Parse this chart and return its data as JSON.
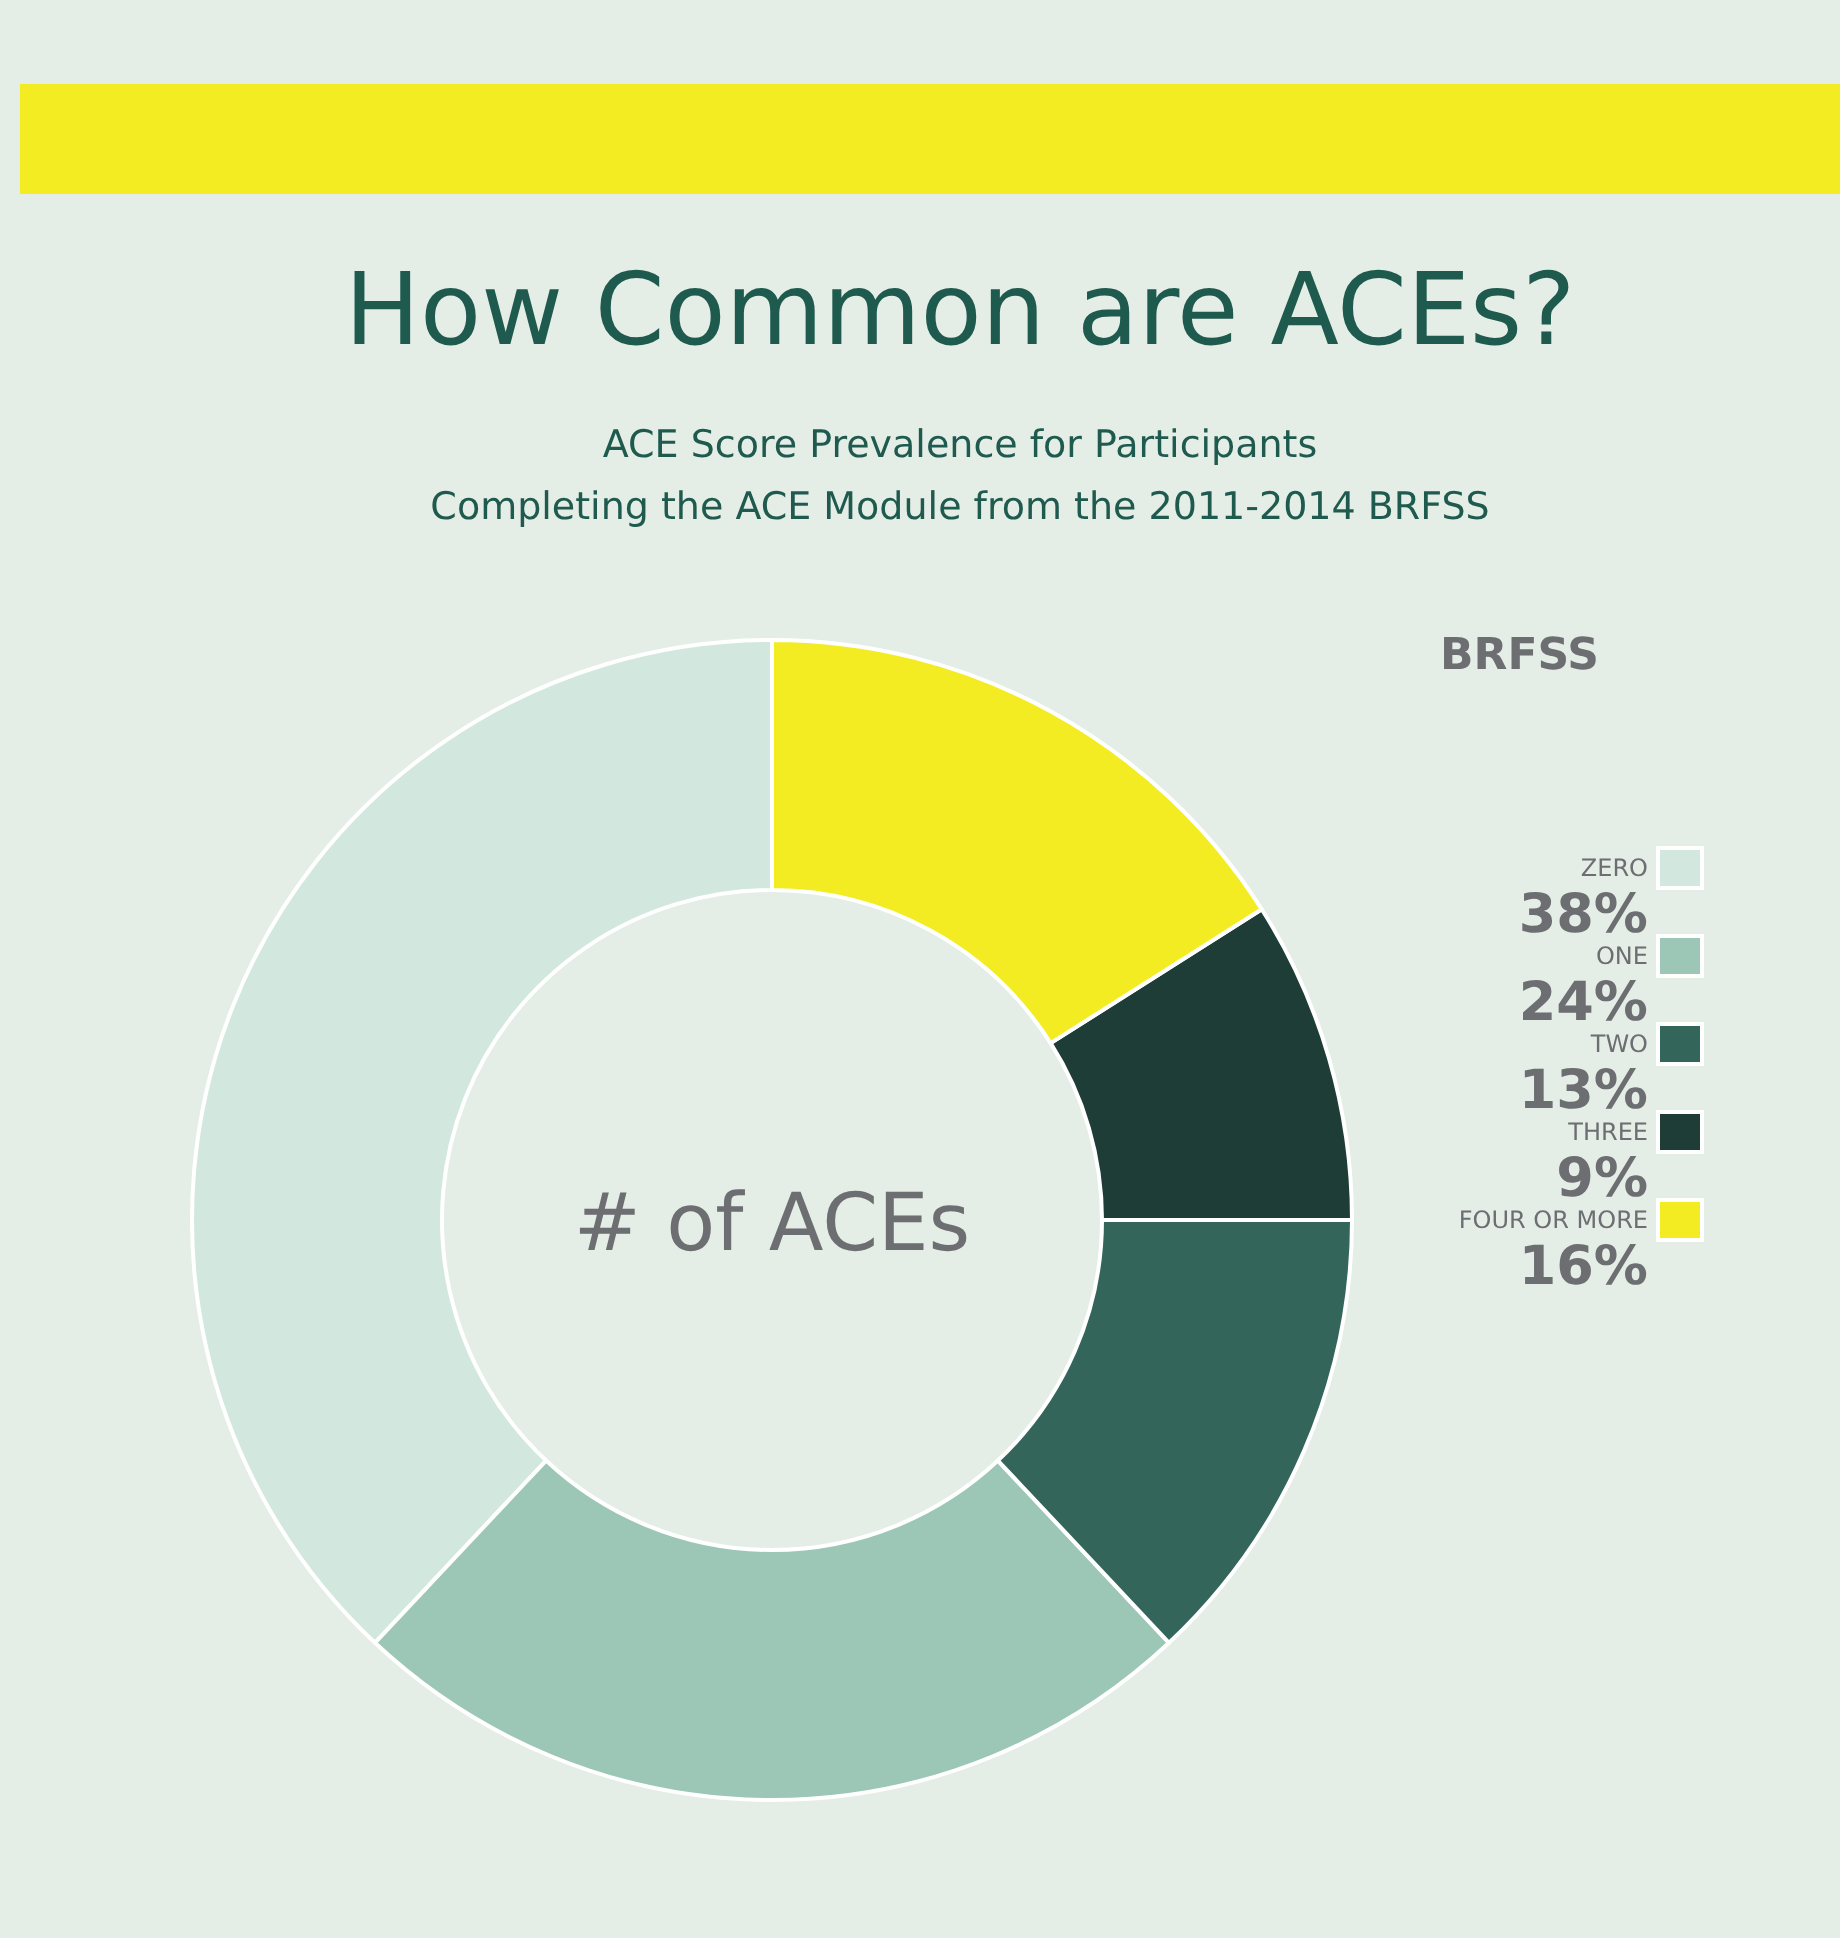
{
  "chart_data": {
    "type": "donut",
    "title": "How Common are ACEs?",
    "subtitle": "ACE Score Prevalence for Participants\nCompleting the ACE Module from the 2011-2014 BRFSS",
    "legend_title": "BRFSS",
    "annotations": [
      "# of ACEs"
    ],
    "categories": [
      "ZERO",
      "ONE",
      "TWO",
      "THREE",
      "FOUR OR MORE"
    ],
    "values": [
      38,
      24,
      13,
      9,
      16
    ],
    "value_labels": [
      "38%",
      "24%",
      "13%",
      "9%",
      "16%"
    ],
    "colors": [
      "#d2e8de",
      "#9cc7b7",
      "#33655a",
      "#1d3d36",
      "#f4ec22"
    ],
    "legend": "right"
  }
}
